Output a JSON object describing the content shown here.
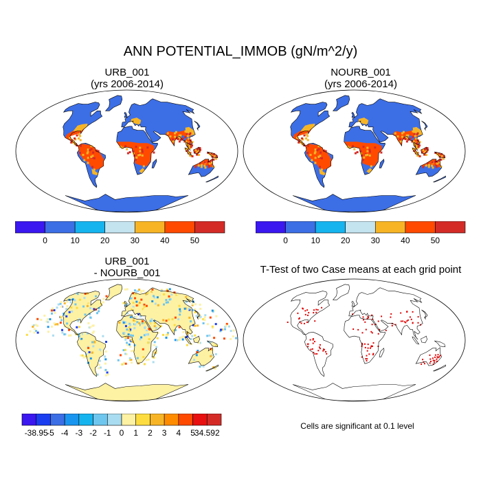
{
  "title": "ANN POTENTIAL_IMMOB (gN/m^2/y)",
  "panels": {
    "p1": {
      "line1": "URB_001",
      "line2": "(yrs 2006-2014)"
    },
    "p2": {
      "line1": "NOURB_001",
      "line2": "(yrs 2006-2014)"
    },
    "p3": {
      "line1": "URB_001",
      "line2": "- NOURB_001"
    },
    "p4": {
      "line1": "T-Test of two Case means at each grid point"
    }
  },
  "colorbar_abs": {
    "colors": [
      "#3b17f0",
      "#3c6ee6",
      "#16b4ef",
      "#c4e4f0",
      "#f7b526",
      "#ff4a00",
      "#d42b27"
    ],
    "labels": [
      "0",
      "10",
      "20",
      "30",
      "40",
      "50"
    ]
  },
  "colorbar_diff": {
    "colors": [
      "#3b17f0",
      "#1b3ef0",
      "#3c6ee6",
      "#1a95ef",
      "#16b4ef",
      "#6ec6ee",
      "#a9dcf0",
      "#fdf1a4",
      "#fddc40",
      "#f7b526",
      "#ff8c00",
      "#ff4a00",
      "#e81010",
      "#d42b27"
    ],
    "labels": [
      "-38.95",
      "-5",
      "-4",
      "-3",
      "-2",
      "-1",
      "0",
      "1",
      "2",
      "3",
      "4",
      "5",
      "34.592"
    ]
  },
  "significance_note": "Cells are significant at 0.1 level"
}
